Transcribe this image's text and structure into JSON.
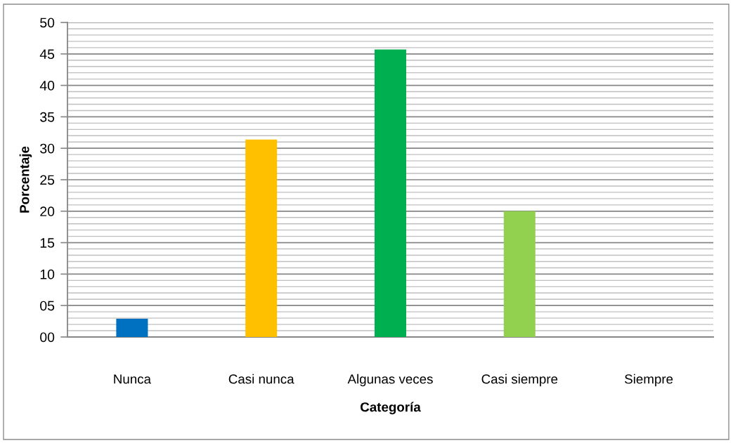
{
  "chart_data": {
    "type": "bar",
    "xlabel": "Categoría",
    "ylabel": "Porcentaje",
    "categories": [
      "Nunca",
      "Casi nunca",
      "Algunas veces",
      "Casi siempre",
      "Siempre"
    ],
    "values": [
      2.9,
      31.4,
      45.7,
      20.0,
      0
    ],
    "colors": [
      "#0070c0",
      "#ffc000",
      "#00b050",
      "#92d050",
      null
    ],
    "ylim": [
      0,
      50
    ],
    "yticks": [
      {
        "value": 0,
        "label": "00"
      },
      {
        "value": 1,
        "label": null
      },
      {
        "value": 2,
        "label": null
      },
      {
        "value": 3,
        "label": null
      },
      {
        "value": 4,
        "label": null
      },
      {
        "value": 5,
        "label": "05"
      },
      {
        "value": 6,
        "label": null
      },
      {
        "value": 7,
        "label": null
      },
      {
        "value": 8,
        "label": null
      },
      {
        "value": 9,
        "label": null
      },
      10,
      {
        "value": 11,
        "label": null
      },
      {
        "value": 12,
        "label": null
      },
      {
        "value": 13,
        "label": null
      },
      {
        "value": 14,
        "label": null
      },
      15,
      {
        "value": 16,
        "label": null
      },
      {
        "value": 17,
        "label": null
      },
      {
        "value": 18,
        "label": null
      },
      {
        "value": 19,
        "label": null
      },
      20,
      {
        "value": 21,
        "label": null
      },
      {
        "value": 22,
        "label": null
      },
      {
        "value": 23,
        "label": null
      },
      {
        "value": 24,
        "label": null
      },
      25,
      {
        "value": 26,
        "label": null
      },
      {
        "value": 27,
        "label": null
      },
      {
        "value": 28,
        "label": null
      },
      {
        "value": 29,
        "label": null
      },
      30,
      {
        "value": 31,
        "label": null
      },
      {
        "value": 32,
        "label": null
      },
      {
        "value": 33,
        "label": null
      },
      {
        "value": 34,
        "label": null
      },
      35,
      {
        "value": 36,
        "label": null
      },
      {
        "value": 37,
        "label": null
      },
      {
        "value": 38,
        "label": null
      },
      {
        "value": 39,
        "label": null
      },
      40,
      {
        "value": 41,
        "label": null
      },
      {
        "value": 42,
        "label": null
      },
      {
        "value": 43,
        "label": null
      },
      {
        "value": 44,
        "label": null
      },
      45,
      {
        "value": 46,
        "label": null
      },
      {
        "value": 47,
        "label": null
      },
      {
        "value": 48,
        "label": null
      },
      {
        "value": 49,
        "label": null
      },
      50
    ],
    "grid": "y"
  }
}
